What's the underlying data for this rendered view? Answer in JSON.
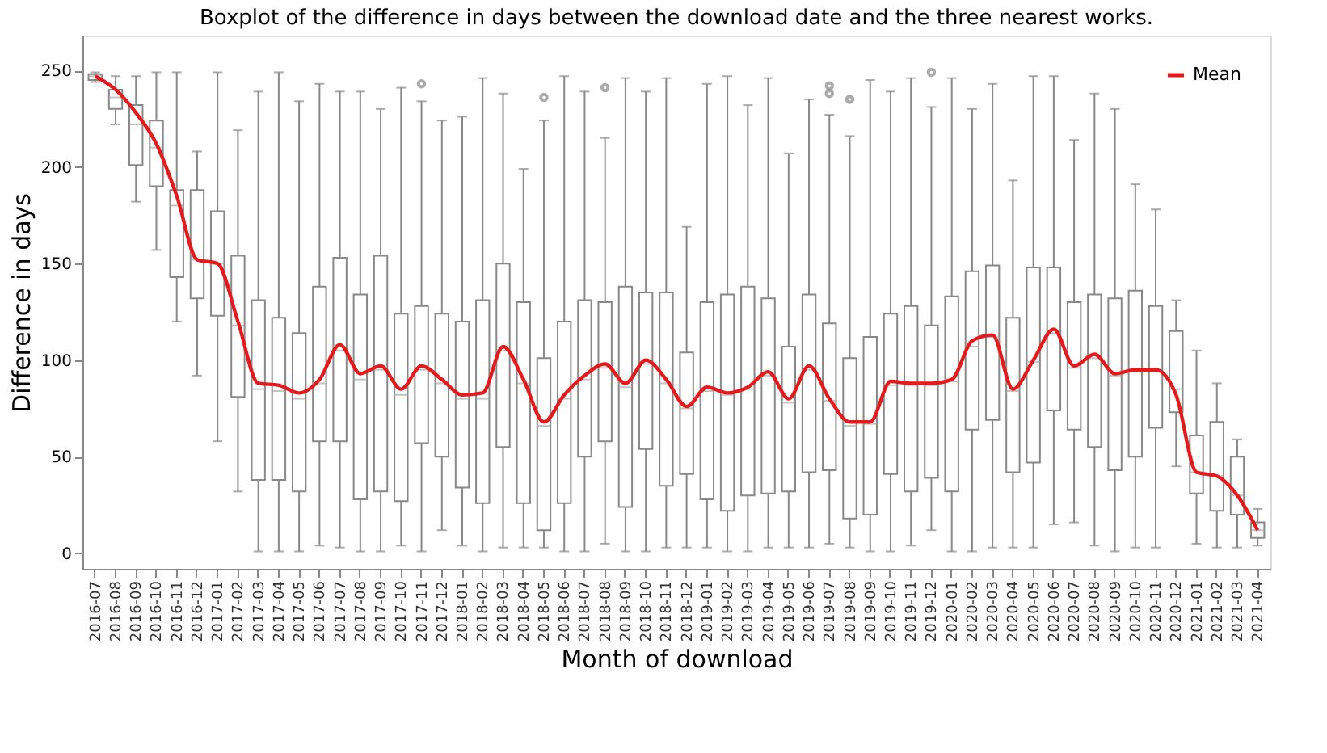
{
  "chart_data": {
    "type": "box",
    "title": "Boxplot of the difference in days between the download date and the three nearest works.",
    "xlabel": "Month of download",
    "ylabel": "Difference in days",
    "categories": [
      "2016-07",
      "2016-08",
      "2016-09",
      "2016-10",
      "2016-11",
      "2016-12",
      "2017-01",
      "2017-02",
      "2017-03",
      "2017-04",
      "2017-05",
      "2017-06",
      "2017-07",
      "2017-08",
      "2017-09",
      "2017-10",
      "2017-11",
      "2017-12",
      "2018-01",
      "2018-02",
      "2018-03",
      "2018-04",
      "2018-05",
      "2018-06",
      "2018-07",
      "2018-08",
      "2018-09",
      "2018-10",
      "2018-11",
      "2018-12",
      "2019-01",
      "2019-02",
      "2019-03",
      "2019-04",
      "2019-05",
      "2019-06",
      "2019-07",
      "2019-08",
      "2019-09",
      "2019-10",
      "2019-11",
      "2019-12",
      "2020-01",
      "2020-02",
      "2020-03",
      "2020-04",
      "2020-05",
      "2020-06",
      "2020-07",
      "2020-08",
      "2020-09",
      "2020-10",
      "2020-11",
      "2020-12",
      "2021-01",
      "2021-02",
      "2021-03",
      "2021-04"
    ],
    "boxes": [
      {
        "low": 244,
        "q1": 245,
        "median": 247,
        "q3": 248,
        "high": 249
      },
      {
        "low": 222,
        "q1": 230,
        "median": 236,
        "q3": 240,
        "high": 247
      },
      {
        "low": 182,
        "q1": 201,
        "median": 222,
        "q3": 232,
        "high": 247
      },
      {
        "low": 157,
        "q1": 190,
        "median": 210,
        "q3": 224,
        "high": 249
      },
      {
        "low": 120,
        "q1": 143,
        "median": 180,
        "q3": 188,
        "high": 249
      },
      {
        "low": 92,
        "q1": 132,
        "median": 152,
        "q3": 188,
        "high": 208
      },
      {
        "low": 58,
        "q1": 123,
        "median": 150,
        "q3": 177,
        "high": 249
      },
      {
        "low": 32,
        "q1": 81,
        "median": 118,
        "q3": 154,
        "high": 219
      },
      {
        "low": 1,
        "q1": 38,
        "median": 85,
        "q3": 131,
        "high": 239
      },
      {
        "low": 1,
        "q1": 38,
        "median": 84,
        "q3": 122,
        "high": 249
      },
      {
        "low": 1,
        "q1": 32,
        "median": 80,
        "q3": 114,
        "high": 234
      },
      {
        "low": 4,
        "q1": 58,
        "median": 88,
        "q3": 138,
        "high": 243
      },
      {
        "low": 3,
        "q1": 58,
        "median": 105,
        "q3": 153,
        "high": 239
      },
      {
        "low": 1,
        "q1": 28,
        "median": 90,
        "q3": 134,
        "high": 239
      },
      {
        "low": 1,
        "q1": 32,
        "median": 95,
        "q3": 154,
        "high": 230
      },
      {
        "low": 4,
        "q1": 27,
        "median": 82,
        "q3": 124,
        "high": 241
      },
      {
        "low": 1,
        "q1": 57,
        "median": 95,
        "q3": 128,
        "high": 234,
        "outliers": [
          243
        ]
      },
      {
        "low": 12,
        "q1": 50,
        "median": 88,
        "q3": 124,
        "high": 224
      },
      {
        "low": 4,
        "q1": 34,
        "median": 80,
        "q3": 120,
        "high": 226
      },
      {
        "low": 1,
        "q1": 26,
        "median": 80,
        "q3": 131,
        "high": 246
      },
      {
        "low": 3,
        "q1": 55,
        "median": 105,
        "q3": 150,
        "high": 238
      },
      {
        "low": 3,
        "q1": 26,
        "median": 88,
        "q3": 130,
        "high": 199
      },
      {
        "low": 3,
        "q1": 12,
        "median": 66,
        "q3": 101,
        "high": 224,
        "outliers": [
          236
        ]
      },
      {
        "low": 1,
        "q1": 26,
        "median": 80,
        "q3": 120,
        "high": 247
      },
      {
        "low": 1,
        "q1": 50,
        "median": 90,
        "q3": 131,
        "high": 239
      },
      {
        "low": 5,
        "q1": 58,
        "median": 96,
        "q3": 130,
        "high": 215,
        "outliers": [
          241
        ]
      },
      {
        "low": 1,
        "q1": 24,
        "median": 86,
        "q3": 138,
        "high": 246
      },
      {
        "low": 1,
        "q1": 54,
        "median": 98,
        "q3": 135,
        "high": 239
      },
      {
        "low": 3,
        "q1": 35,
        "median": 88,
        "q3": 135,
        "high": 246
      },
      {
        "low": 3,
        "q1": 41,
        "median": 75,
        "q3": 104,
        "high": 169
      },
      {
        "low": 3,
        "q1": 28,
        "median": 84,
        "q3": 130,
        "high": 243
      },
      {
        "low": 1,
        "q1": 22,
        "median": 82,
        "q3": 134,
        "high": 247
      },
      {
        "low": 1,
        "q1": 30,
        "median": 85,
        "q3": 138,
        "high": 232
      },
      {
        "low": 3,
        "q1": 31,
        "median": 92,
        "q3": 132,
        "high": 246
      },
      {
        "low": 3,
        "q1": 32,
        "median": 78,
        "q3": 107,
        "high": 207
      },
      {
        "low": 3,
        "q1": 42,
        "median": 95,
        "q3": 134,
        "high": 235
      },
      {
        "low": 5,
        "q1": 43,
        "median": 79,
        "q3": 119,
        "high": 227,
        "outliers": [
          242,
          238
        ]
      },
      {
        "low": 3,
        "q1": 18,
        "median": 66,
        "q3": 101,
        "high": 216,
        "outliers": [
          235
        ]
      },
      {
        "low": 1,
        "q1": 20,
        "median": 67,
        "q3": 112,
        "high": 245
      },
      {
        "low": 1,
        "q1": 41,
        "median": 87,
        "q3": 124,
        "high": 239
      },
      {
        "low": 4,
        "q1": 32,
        "median": 87,
        "q3": 128,
        "high": 246
      },
      {
        "low": 12,
        "q1": 39,
        "median": 87,
        "q3": 118,
        "high": 231,
        "outliers": [
          249
        ]
      },
      {
        "low": 1,
        "q1": 32,
        "median": 89,
        "q3": 133,
        "high": 246
      },
      {
        "low": 1,
        "q1": 64,
        "median": 107,
        "q3": 146,
        "high": 230
      },
      {
        "low": 3,
        "q1": 69,
        "median": 112,
        "q3": 149,
        "high": 243
      },
      {
        "low": 3,
        "q1": 42,
        "median": 84,
        "q3": 122,
        "high": 193
      },
      {
        "low": 3,
        "q1": 47,
        "median": 99,
        "q3": 148,
        "high": 247
      },
      {
        "low": 15,
        "q1": 74,
        "median": 114,
        "q3": 148,
        "high": 247
      },
      {
        "low": 16,
        "q1": 64,
        "median": 96,
        "q3": 130,
        "high": 214
      },
      {
        "low": 4,
        "q1": 55,
        "median": 101,
        "q3": 134,
        "high": 238
      },
      {
        "low": 1,
        "q1": 43,
        "median": 92,
        "q3": 132,
        "high": 230
      },
      {
        "low": 3,
        "q1": 50,
        "median": 94,
        "q3": 136,
        "high": 191
      },
      {
        "low": 3,
        "q1": 65,
        "median": 94,
        "q3": 128,
        "high": 178
      },
      {
        "low": 45,
        "q1": 73,
        "median": 85,
        "q3": 115,
        "high": 131
      },
      {
        "low": 5,
        "q1": 31,
        "median": 42,
        "q3": 61,
        "high": 105
      },
      {
        "low": 3,
        "q1": 22,
        "median": 40,
        "q3": 68,
        "high": 88
      },
      {
        "low": 3,
        "q1": 20,
        "median": 30,
        "q3": 50,
        "high": 59
      },
      {
        "low": 4,
        "q1": 8,
        "median": 12,
        "q3": 16,
        "high": 23
      }
    ],
    "series": [
      {
        "name": "Mean",
        "type": "line",
        "color": "#e41a1c",
        "values": [
          247,
          240,
          228,
          212,
          185,
          152,
          150,
          120,
          88,
          87,
          83,
          90,
          108,
          93,
          97,
          85,
          97,
          90,
          82,
          83,
          107,
          90,
          68,
          82,
          92,
          98,
          88,
          100,
          90,
          76,
          86,
          83,
          86,
          94,
          80,
          97,
          80,
          68,
          68,
          89,
          88,
          88,
          90,
          110,
          113,
          85,
          100,
          116,
          97,
          103,
          93,
          95,
          95,
          82,
          42,
          40,
          30,
          12
        ]
      }
    ],
    "ylim": [
      -8,
      268
    ],
    "yticks": [
      0,
      50,
      100,
      150,
      200,
      250
    ],
    "grid": false,
    "legend": "top right",
    "line_style": "solid",
    "marker": "none"
  }
}
